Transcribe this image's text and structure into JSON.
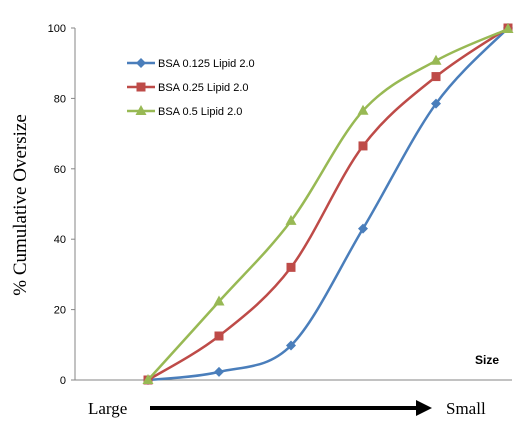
{
  "chart_data": {
    "type": "line",
    "title": "",
    "xlabel": "Size",
    "ylabel": "% Cumulative Oversize",
    "ylim": [
      0,
      100
    ],
    "yticks": [
      0,
      20,
      40,
      60,
      80,
      100
    ],
    "grid": false,
    "legend_position": "top-left",
    "direction": {
      "start": "Large",
      "end": "Small"
    },
    "x": [
      1,
      2,
      3,
      4,
      5,
      6
    ],
    "series": [
      {
        "name": "BSA 0.125 Lipid 2.0",
        "color": "#4a7ebb",
        "marker": "diamond",
        "values": [
          0,
          2.3,
          9.8,
          43,
          78.5,
          100
        ]
      },
      {
        "name": "BSA 0.25 Lipid 2.0",
        "color": "#be4b48",
        "marker": "square",
        "values": [
          0,
          12.5,
          32,
          66.5,
          86.2,
          100
        ]
      },
      {
        "name": "BSA 0.5 Lipid 2.0",
        "color": "#98b954",
        "marker": "triangle",
        "values": [
          0,
          22.3,
          45.2,
          76.5,
          90.7,
          99.7
        ]
      }
    ]
  }
}
